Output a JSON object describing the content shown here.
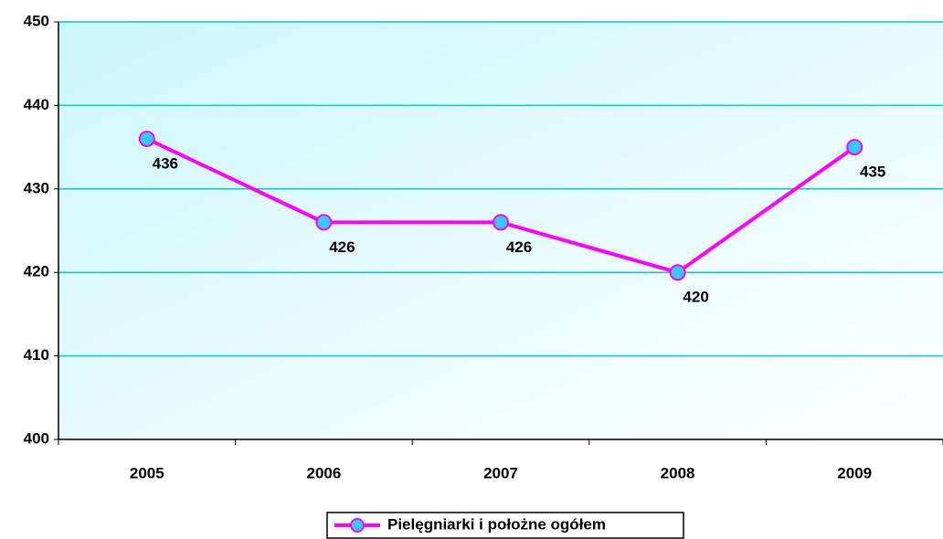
{
  "chart_data": {
    "type": "line",
    "categories": [
      "2005",
      "2006",
      "2007",
      "2008",
      "2009"
    ],
    "series": [
      {
        "name": "Pielęgniarki i położne ogółem",
        "color": "#ff00ff",
        "marker_color": "#33ccff",
        "values": [
          436,
          426,
          426,
          420,
          435
        ]
      }
    ],
    "ylim": [
      400,
      450
    ],
    "yticks": [
      400,
      410,
      420,
      430,
      440,
      450
    ],
    "grid": true,
    "grid_color": "#00cccc",
    "legend": "bottom"
  }
}
